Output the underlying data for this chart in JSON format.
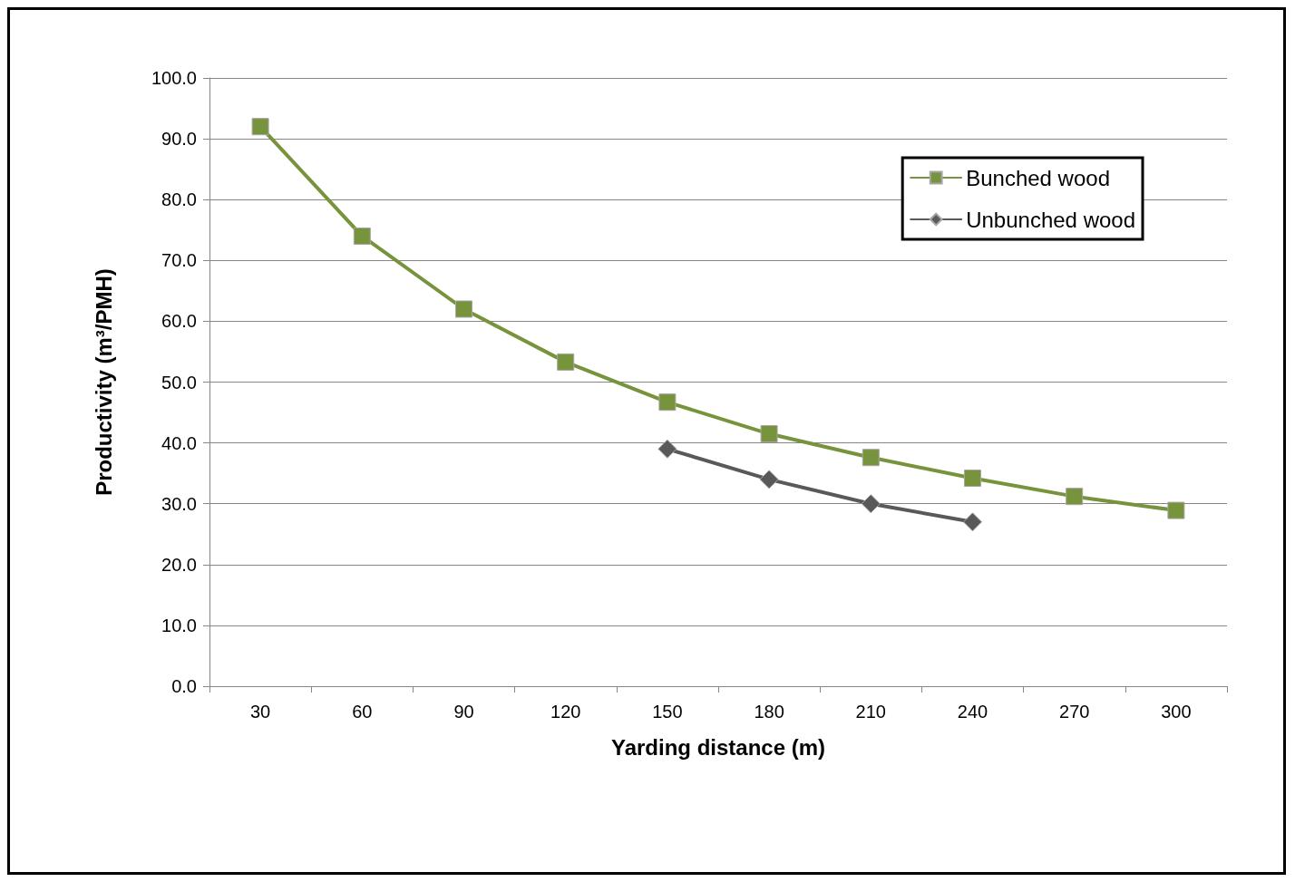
{
  "chart_data": {
    "type": "line",
    "xlabel": "Yarding distance (m)",
    "ylabel": "Productivity (m³/PMH)",
    "categories": [
      "30",
      "60",
      "90",
      "120",
      "150",
      "180",
      "210",
      "240",
      "270",
      "300"
    ],
    "series": [
      {
        "name": "Bunched wood",
        "color": "#77933c",
        "marker": "square",
        "values": [
          92,
          74,
          62,
          53.3,
          46.7,
          41.5,
          37.6,
          34.2,
          31.2,
          28.9
        ]
      },
      {
        "name": "Unbunched wood",
        "color": "#595959",
        "marker": "diamond",
        "values": [
          null,
          null,
          null,
          null,
          39,
          34,
          30,
          27,
          null,
          null
        ]
      }
    ],
    "ylim": [
      0,
      100
    ],
    "yticks": [
      {
        "value": 0,
        "label": "0.0"
      },
      {
        "value": 10,
        "label": "10.0"
      },
      {
        "value": 20,
        "label": "20.0"
      },
      {
        "value": 30,
        "label": "30.0"
      },
      {
        "value": 40,
        "label": "40.0"
      },
      {
        "value": 50,
        "label": "50.0"
      },
      {
        "value": 60,
        "label": "60.0"
      },
      {
        "value": 70,
        "label": "70.0"
      },
      {
        "value": 80,
        "label": "80.0"
      },
      {
        "value": 90,
        "label": "90.0"
      },
      {
        "value": 100,
        "label": "100.0"
      }
    ],
    "grid": "y",
    "legend": "top right"
  }
}
